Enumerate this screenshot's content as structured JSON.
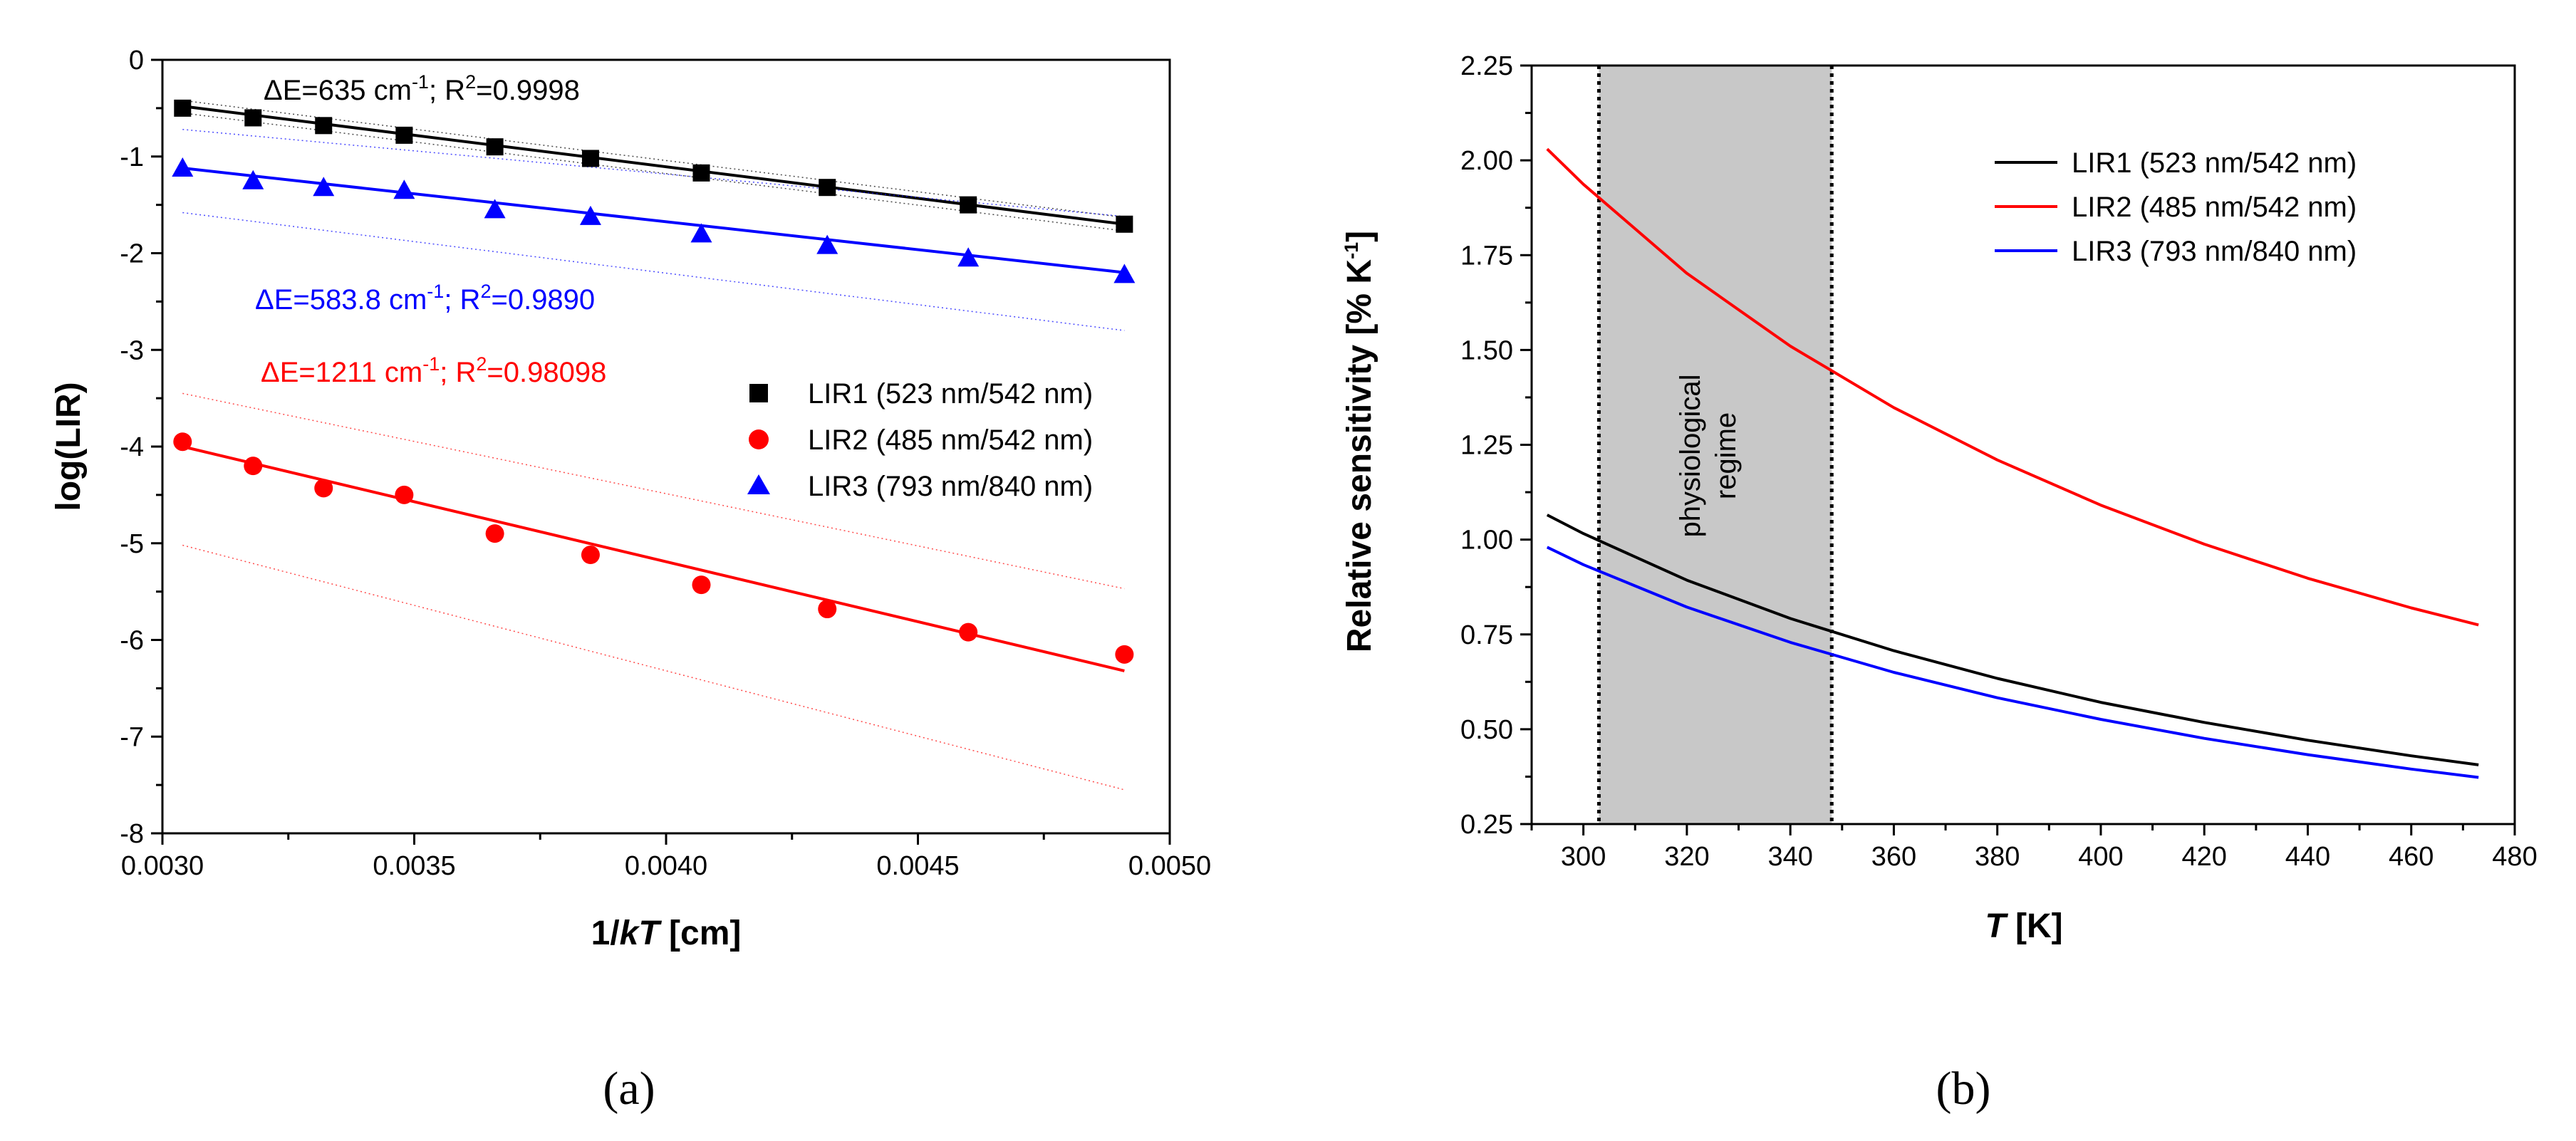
{
  "panel_a_caption": "(a)",
  "panel_b_caption": "(b)",
  "colors": {
    "lir1": "#000000",
    "lir2": "#ff0000",
    "lir3": "#0000ff",
    "band": "#c8c8c8"
  },
  "chart_data": [
    {
      "type": "scatter",
      "panel": "a",
      "title": "",
      "xlabel_main": "1/",
      "xlabel_italic": "kT",
      "xlabel_unit": " [cm]",
      "ylabel": "log(LIR)",
      "xlim": [
        0.003,
        0.005
      ],
      "ylim": [
        -8,
        0
      ],
      "xticks": [
        0.003,
        0.0035,
        0.004,
        0.0045,
        0.005
      ],
      "xtick_labels": [
        "0.0030",
        "0.0035",
        "0.0040",
        "0.0045",
        "0.0050"
      ],
      "yticks": [
        0,
        -1,
        -2,
        -3,
        -4,
        -5,
        -6,
        -7,
        -8
      ],
      "ytick_labels": [
        "0",
        "-1",
        "-2",
        "-3",
        "-4",
        "-5",
        "-6",
        "-7",
        "-8"
      ],
      "x": [
        0.00304,
        0.00318,
        0.00332,
        0.00348,
        0.00366,
        0.00385,
        0.00407,
        0.00432,
        0.0046,
        0.00491
      ],
      "series": [
        {
          "name": "LIR1 (523 nm/542 nm)",
          "marker": "square",
          "color": "#000000",
          "values": [
            -0.5,
            -0.6,
            -0.68,
            -0.78,
            -0.9,
            -1.02,
            -1.17,
            -1.32,
            -1.5,
            -1.7
          ],
          "fit": [
            -0.48,
            -1.7
          ],
          "band_upper": [
            -0.42,
            -1.63
          ],
          "band_lower": [
            -0.55,
            -1.77
          ],
          "annotation": {
            "prefix": "ΔE=635 cm",
            "sup1": "-1",
            "mid": "; R",
            "sup2": "2",
            "suffix": "=0.9998"
          }
        },
        {
          "name": "LIR2 (485 nm/542 nm)",
          "marker": "circle",
          "color": "#ff0000",
          "values": [
            -3.95,
            -4.2,
            -4.43,
            -4.5,
            -4.9,
            -5.12,
            -5.43,
            -5.68,
            -5.92,
            -6.15
          ],
          "fit": [
            -4.0,
            -6.32
          ],
          "band_upper": [
            -3.45,
            -5.47
          ],
          "band_lower": [
            -5.02,
            -7.55
          ],
          "annotation": {
            "prefix": "ΔE=1211 cm",
            "sup1": "-1",
            "mid": "; R",
            "sup2": "2",
            "suffix": "=0.98098"
          }
        },
        {
          "name": "LIR3 (793 nm/840 nm)",
          "marker": "triangle",
          "color": "#0000ff",
          "values": [
            -1.12,
            -1.25,
            -1.32,
            -1.35,
            -1.55,
            -1.62,
            -1.8,
            -1.92,
            -2.05,
            -2.22
          ],
          "fit": [
            -1.12,
            -2.2
          ],
          "band_upper": [
            -0.72,
            -1.62
          ],
          "band_lower": [
            -1.58,
            -2.8
          ],
          "annotation": {
            "prefix": "ΔE=583.8 cm",
            "sup1": "-1",
            "mid": "; R",
            "sup2": "2",
            "suffix": "=0.9890"
          }
        }
      ],
      "legend_position": "center-right"
    },
    {
      "type": "line",
      "panel": "b",
      "title": "",
      "xlabel_italic": "T",
      "xlabel_unit": " [K]",
      "ylabel_main": "Relative sensitivity [% K",
      "ylabel_sup": "-1",
      "ylabel_end": "]",
      "xlim": [
        290,
        480
      ],
      "ylim": [
        0.25,
        2.25
      ],
      "xticks": [
        300,
        320,
        340,
        360,
        380,
        400,
        420,
        440,
        460,
        480
      ],
      "xtick_labels": [
        "300",
        "320",
        "340",
        "360",
        "380",
        "400",
        "420",
        "440",
        "460",
        "480"
      ],
      "yticks": [
        0.25,
        0.5,
        0.75,
        1.0,
        1.25,
        1.5,
        1.75,
        2.0,
        2.25
      ],
      "ytick_labels": [
        "0.25",
        "0.50",
        "0.75",
        "1.00",
        "1.25",
        "1.50",
        "1.75",
        "2.00",
        "2.25"
      ],
      "region": {
        "x_start": 303,
        "x_end": 348,
        "label_line1": "physiological",
        "label_line2": "regime"
      },
      "x": [
        293,
        300,
        320,
        340,
        360,
        380,
        400,
        420,
        440,
        460,
        473
      ],
      "series": [
        {
          "name": "LIR1 (523 nm/542 nm)",
          "color": "#000000",
          "values": [
            1.065,
            1.016,
            0.893,
            0.792,
            0.707,
            0.634,
            0.571,
            0.518,
            0.471,
            0.43,
            0.406
          ]
        },
        {
          "name": "LIR2 (485 nm/542 nm)",
          "color": "#ff0000",
          "values": [
            2.03,
            1.937,
            1.702,
            1.51,
            1.348,
            1.21,
            1.091,
            0.988,
            0.898,
            0.82,
            0.775
          ]
        },
        {
          "name": "LIR3 (793 nm/840 nm)",
          "color": "#0000ff",
          "values": [
            0.98,
            0.934,
            0.822,
            0.729,
            0.65,
            0.583,
            0.526,
            0.476,
            0.433,
            0.395,
            0.373
          ]
        }
      ],
      "legend_position": "top-right"
    }
  ]
}
